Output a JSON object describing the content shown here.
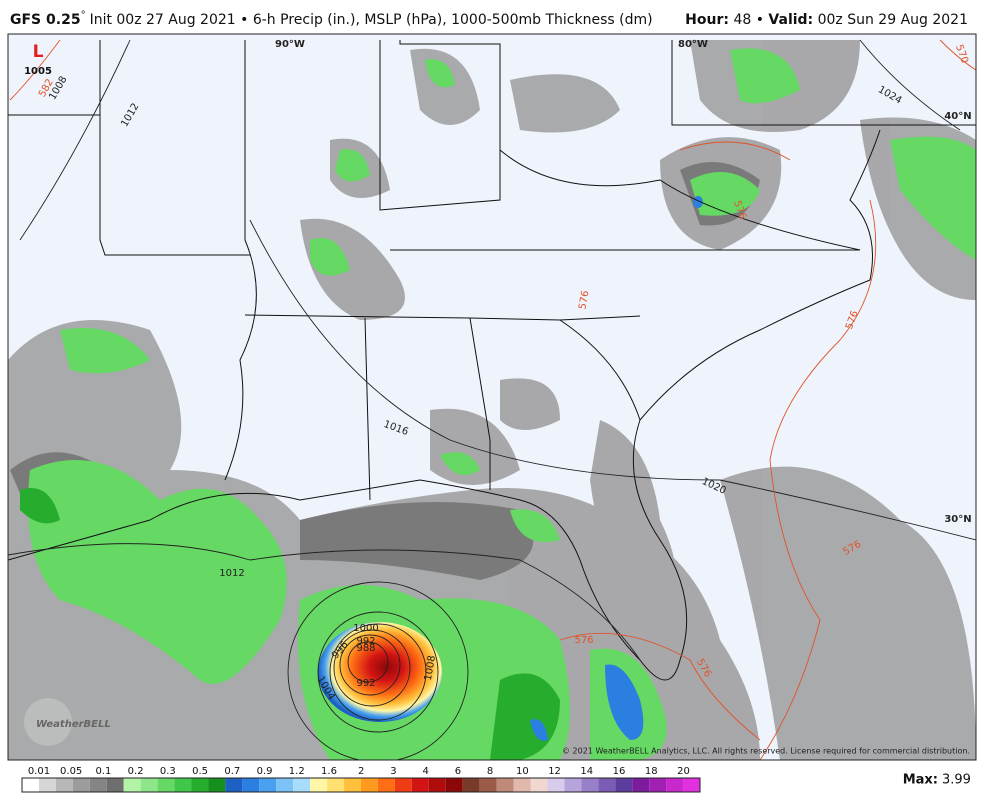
{
  "header": {
    "model": "GFS 0.25",
    "degree": "°",
    "description": "Init 00z 27 Aug 2021 • 6-h Precip (in.), MSLP (hPa), 1000-500mb Thickness (dm)",
    "hour_label": "Hour:",
    "hour_value": "48 •",
    "valid_label": "Valid:",
    "valid_value": "00z Sun 29 Aug 2021"
  },
  "map": {
    "geo_labels": [
      "90°W",
      "80°W",
      "40°N",
      "30°N"
    ],
    "low_symbol": "L",
    "low_pressure": "1005",
    "isobar_labels": [
      "1008",
      "1012",
      "1024",
      "1016",
      "1020",
      "1012",
      "1000",
      "996",
      "992",
      "988",
      "992",
      "1004",
      "1008"
    ],
    "thickness_labels": [
      "582",
      "570",
      "576",
      "576",
      "576",
      "576",
      "576",
      "576"
    ],
    "copyright": "© 2021 WeatherBELL Analytics, LLC. All rights reserved. License required for commercial distribution.",
    "logo": "WeatherBELL"
  },
  "colorbar": {
    "labels": [
      "0.01",
      "0.05",
      "0.1",
      "0.2",
      "0.3",
      "0.5",
      "0.7",
      "0.9",
      "1.2",
      "1.6",
      "2",
      "3",
      "4",
      "6",
      "8",
      "10",
      "12",
      "14",
      "16",
      "18",
      "20"
    ],
    "colors": [
      "#ffffff",
      "#d6d6d6",
      "#b8b8b8",
      "#9c9c9c",
      "#858585",
      "#6e6e6e",
      "#b4f2a8",
      "#8fe68a",
      "#66d864",
      "#3fc74a",
      "#27ad2e",
      "#168f1c",
      "#1c60c4",
      "#2a7fe0",
      "#47a0f0",
      "#7cc2f7",
      "#a8dcfb",
      "#fff6a6",
      "#ffe070",
      "#ffc03c",
      "#ff9a1e",
      "#ff6e14",
      "#f03c14",
      "#d21414",
      "#b00c0c",
      "#8c0808",
      "#7a3a2a",
      "#9c5a48",
      "#c08a7a",
      "#e0b8ac",
      "#f0d8d0",
      "#d8ccec",
      "#b8a4dc",
      "#9880c8",
      "#7a5cb4",
      "#5c3c9c",
      "#7c1c9c",
      "#a020b4",
      "#c828cc",
      "#e030e0"
    ]
  },
  "footer": {
    "max_label": "Max:",
    "max_value": 3.99
  }
}
